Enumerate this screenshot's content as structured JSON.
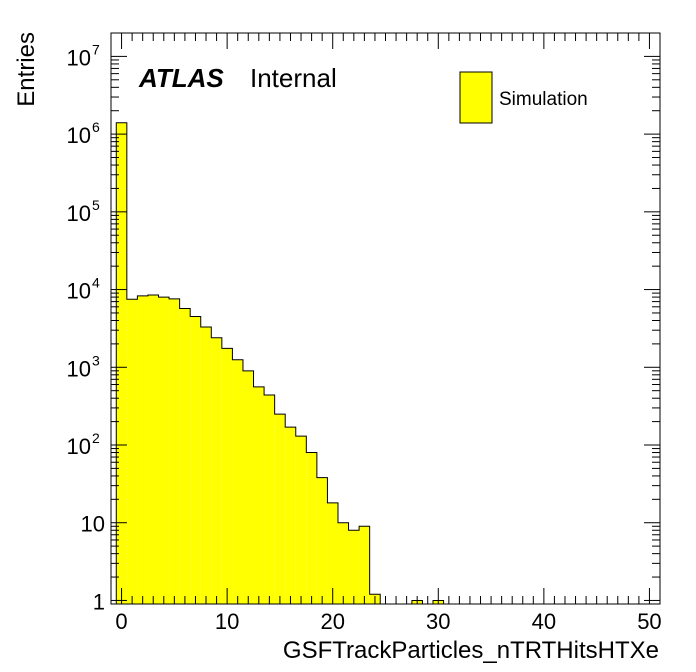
{
  "chart_data": {
    "type": "bar",
    "histogram": true,
    "xlabel": "GSFTrackParticles_nTRTHitsHTXe",
    "ylabel": "Entries",
    "xlim": [
      -1,
      51
    ],
    "ylim": [
      0.9,
      20000000
    ],
    "yscale": "log",
    "bin_width": 1,
    "bin_start": -0.5,
    "x_ticks": [
      0,
      10,
      20,
      30,
      40,
      50
    ],
    "y_ticks": [
      {
        "value": 1,
        "base": "1",
        "exp": ""
      },
      {
        "value": 10,
        "base": "10",
        "exp": ""
      },
      {
        "value": 100,
        "base": "10",
        "exp": "2"
      },
      {
        "value": 1000,
        "base": "10",
        "exp": "3"
      },
      {
        "value": 10000,
        "base": "10",
        "exp": "4"
      },
      {
        "value": 100000,
        "base": "10",
        "exp": "5"
      },
      {
        "value": 1000000,
        "base": "10",
        "exp": "6"
      },
      {
        "value": 10000000,
        "base": "10",
        "exp": "7"
      }
    ],
    "values": [
      1400000,
      7500,
      8300,
      8500,
      8000,
      7600,
      5700,
      4500,
      3300,
      2400,
      1750,
      1250,
      900,
      560,
      440,
      250,
      170,
      130,
      80,
      38,
      18,
      10,
      8,
      9,
      1.2,
      0,
      0,
      0,
      1,
      0,
      1,
      0,
      0,
      0,
      0,
      0,
      0,
      0,
      0,
      0,
      0,
      0,
      0,
      0,
      0,
      0,
      0,
      0,
      0,
      0,
      0
    ],
    "fill_color": "#ffff00",
    "line_color": "#000000",
    "legend": {
      "position": "top-right",
      "entries": [
        {
          "label": "Simulation",
          "color": "#ffff00"
        }
      ]
    },
    "annotation": {
      "bold": "ATLAS",
      "text": "Internal"
    }
  }
}
